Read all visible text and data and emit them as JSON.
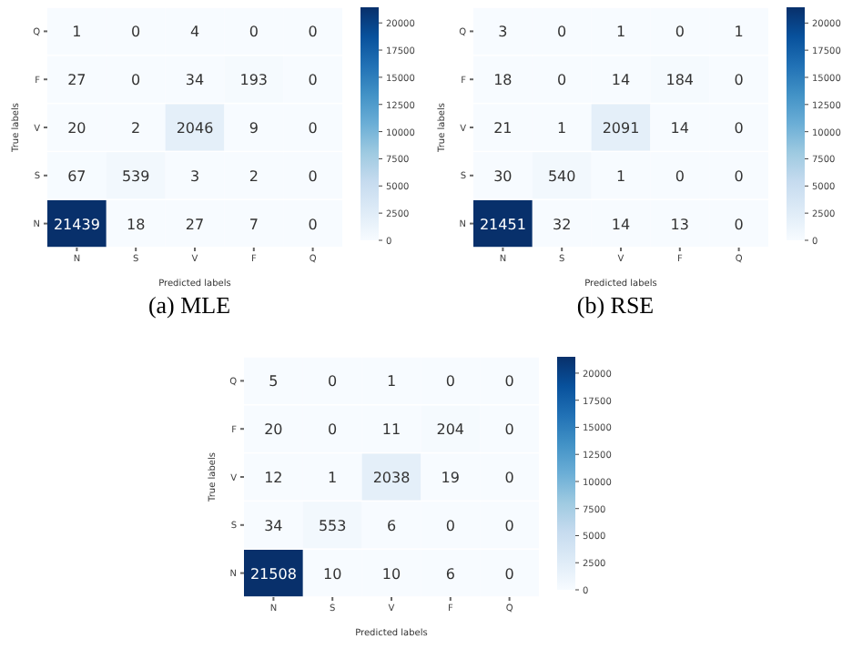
{
  "chart_data": [
    {
      "type": "heatmap",
      "title": "(a) MLE",
      "xlabel": "Predicted labels",
      "ylabel": "True labels",
      "categories": [
        "N",
        "S",
        "V",
        "F",
        "Q"
      ],
      "y_categories": [
        "Q",
        "F",
        "V",
        "S",
        "N"
      ],
      "cells": [
        [
          1,
          0,
          4,
          0,
          0
        ],
        [
          27,
          0,
          34,
          193,
          0
        ],
        [
          20,
          2,
          2046,
          9,
          0
        ],
        [
          67,
          539,
          3,
          2,
          0
        ],
        [
          21439,
          18,
          27,
          7,
          0
        ]
      ],
      "data_labels": true,
      "clim": [
        0,
        21439
      ],
      "cticks": [
        0,
        2500,
        5000,
        7500,
        10000,
        12500,
        15000,
        17500,
        20000
      ]
    },
    {
      "type": "heatmap",
      "title": "(b) RSE",
      "xlabel": "Predicted labels",
      "ylabel": "True labels",
      "categories": [
        "N",
        "S",
        "V",
        "F",
        "Q"
      ],
      "y_categories": [
        "Q",
        "F",
        "V",
        "S",
        "N"
      ],
      "cells": [
        [
          3,
          0,
          1,
          0,
          1
        ],
        [
          18,
          0,
          14,
          184,
          0
        ],
        [
          21,
          1,
          2091,
          14,
          0
        ],
        [
          30,
          540,
          1,
          0,
          0
        ],
        [
          21451,
          32,
          14,
          13,
          0
        ]
      ],
      "data_labels": true,
      "clim": [
        0,
        21451
      ],
      "cticks": [
        0,
        2500,
        5000,
        7500,
        10000,
        12500,
        15000,
        17500,
        20000
      ]
    },
    {
      "type": "heatmap",
      "xlabel": "Predicted labels",
      "ylabel": "True labels",
      "categories": [
        "N",
        "S",
        "V",
        "F",
        "Q"
      ],
      "y_categories": [
        "Q",
        "F",
        "V",
        "S",
        "N"
      ],
      "cells": [
        [
          5,
          0,
          1,
          0,
          0
        ],
        [
          20,
          0,
          11,
          204,
          0
        ],
        [
          12,
          1,
          2038,
          19,
          0
        ],
        [
          34,
          553,
          6,
          0,
          0
        ],
        [
          21508,
          10,
          10,
          6,
          0
        ]
      ],
      "data_labels": true,
      "clim": [
        0,
        21508
      ],
      "cticks": [
        0,
        2500,
        5000,
        7500,
        10000,
        12500,
        15000,
        17500,
        20000
      ]
    }
  ]
}
